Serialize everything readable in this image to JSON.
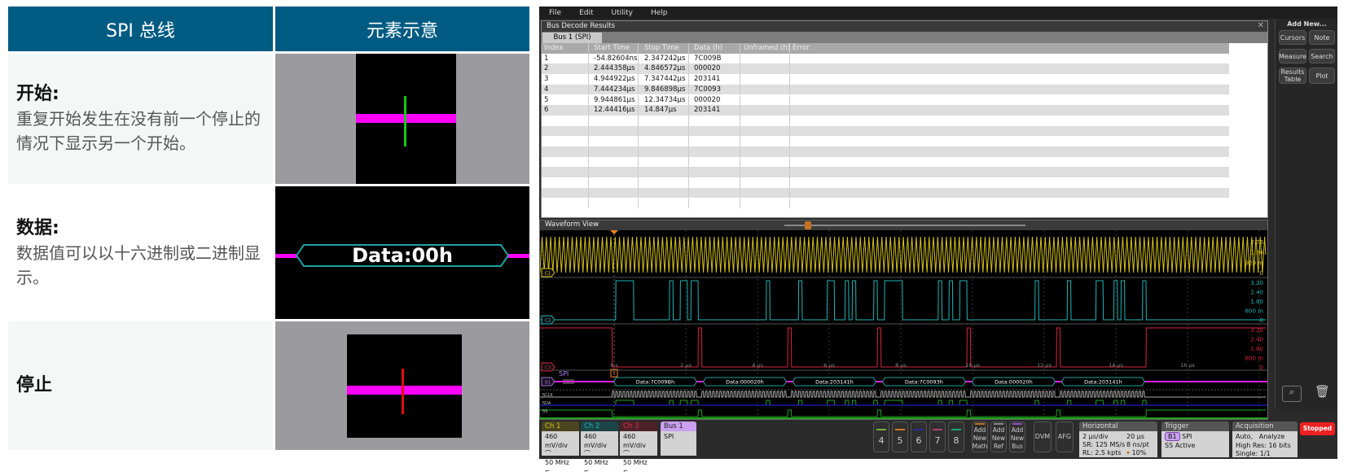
{
  "legend_table": {
    "headers": [
      "SPI 总线",
      "元素示意"
    ],
    "rows": [
      {
        "title": "开始:",
        "desc": "重复开始发生在没有前一个停止的情况下显示另一个开始。"
      },
      {
        "title": "数据:",
        "desc": "数据值可以以十六进制或二进制显示。",
        "illustration_label": "Data:00h"
      },
      {
        "title": "停止",
        "desc": ""
      }
    ]
  },
  "scope": {
    "menu": [
      "File",
      "Edit",
      "Utility",
      "Help"
    ],
    "decode": {
      "title": "Bus Decode Results",
      "tab": "Bus 1 (SPI)",
      "columns": [
        "Index",
        "Start Time",
        "Stop Time",
        "Data (h)",
        "Unframed (h)",
        "Error"
      ],
      "rows": [
        [
          "1",
          "-54.82604ns",
          "2.347242µs",
          "7C009B",
          "",
          ""
        ],
        [
          "2",
          "2.444358µs",
          "4.846572µs",
          "000020",
          "",
          ""
        ],
        [
          "3",
          "4.944922µs",
          "7.347442µs",
          "203141",
          "",
          ""
        ],
        [
          "4",
          "7.444234µs",
          "9.846898µs",
          "7C0093",
          "",
          ""
        ],
        [
          "5",
          "9.944861µs",
          "12.34734µs",
          "000020",
          "",
          ""
        ],
        [
          "6",
          "12.44416µs",
          "14.847µs",
          "203141",
          "",
          ""
        ]
      ],
      "packets_us": [
        [
          -0.0548,
          2.347,
          "7C009B"
        ],
        [
          2.444,
          4.847,
          "000020"
        ],
        [
          4.945,
          7.347,
          "203141"
        ],
        [
          7.444,
          9.847,
          "7C0093"
        ],
        [
          9.945,
          12.347,
          "000020"
        ],
        [
          12.444,
          14.847,
          "203141"
        ]
      ]
    },
    "side_panel": {
      "title": "Add New...",
      "buttons": [
        "Cursors",
        "Note",
        "Measure",
        "Search",
        "Results Table",
        "Plot"
      ]
    },
    "waveform": {
      "title": "Waveform View",
      "time_ticks": [
        "0 s",
        "2 µs",
        "4 µs",
        "6 µs",
        "8 µs",
        "10 µs",
        "12 µs",
        "14 µs",
        "16 µs"
      ],
      "c1_labels": [
        "2.76",
        "1.84",
        "920 m",
        "0"
      ],
      "c2_labels": [
        "3.20",
        "2.40",
        "1.60",
        "800 m",
        "0"
      ],
      "c3_labels": [
        "3.20",
        "2.40",
        "1.60",
        "800 m",
        "0"
      ],
      "bus_label": "SPI",
      "bus_prefix": "Data:",
      "digital": [
        "SCLK",
        "SDA",
        "SS"
      ],
      "channel_tags": [
        "C1",
        "C2",
        "C3",
        "B1"
      ],
      "trigger_tag": "T",
      "colors": {
        "ch1": "#d6c21a",
        "ch2": "#1fb5b5",
        "ch3": "#d8233f",
        "bus": "#e020e0",
        "digital_hi": "#1ea31e",
        "digital_lo": "#1a1a9a"
      }
    },
    "bottom": {
      "channels": [
        {
          "name": "Ch 1",
          "scale": "460 mV/div",
          "bw": "50 MHz",
          "color": "#d6c21a",
          "bg": "#4a4520"
        },
        {
          "name": "Ch 2",
          "scale": "460 mV/div",
          "bw": "50 MHz",
          "color": "#1fb5b5",
          "bg": "#1d4448"
        },
        {
          "name": "Ch 3",
          "scale": "460 mV/div",
          "bw": "50 MHz",
          "color": "#e0304a",
          "bg": "#4c2228"
        }
      ],
      "bus": {
        "name": "Bus 1",
        "type": "SPI"
      },
      "slots": [
        {
          "label": "4",
          "color": "#7cab3b"
        },
        {
          "label": "5",
          "color": "#d07a2a"
        },
        {
          "label": "6",
          "color": "#2a2aa0"
        },
        {
          "label": "7",
          "color": "#b0407a"
        },
        {
          "label": "8",
          "color": "#1aa57a"
        }
      ],
      "add": [
        {
          "label": "Add New Math",
          "color": "#c07020"
        },
        {
          "label": "Add New Ref",
          "color": "#888"
        },
        {
          "label": "Add New Bus",
          "color": "#9050c0"
        }
      ],
      "dvm": "DVM",
      "afg": "AFG",
      "horizontal": {
        "title": "Horizontal",
        "l1a": "2 µs/div",
        "l1b": "20 µs",
        "l2a": "SR: 125 MS/s",
        "l2b": "8 ns/pt",
        "l3a": "RL: 2.5 kpts",
        "l3b": "10%"
      },
      "trigger": {
        "title": "Trigger",
        "source": "B1",
        "type": "SPI",
        "cond": "SS Active"
      },
      "acquisition": {
        "title": "Acquisition",
        "l1a": "Auto,",
        "l1b": "Analyze",
        "l2": "High Res: 16 bits",
        "l3": "Single: 1/1"
      },
      "run_state": "Stopped"
    }
  }
}
